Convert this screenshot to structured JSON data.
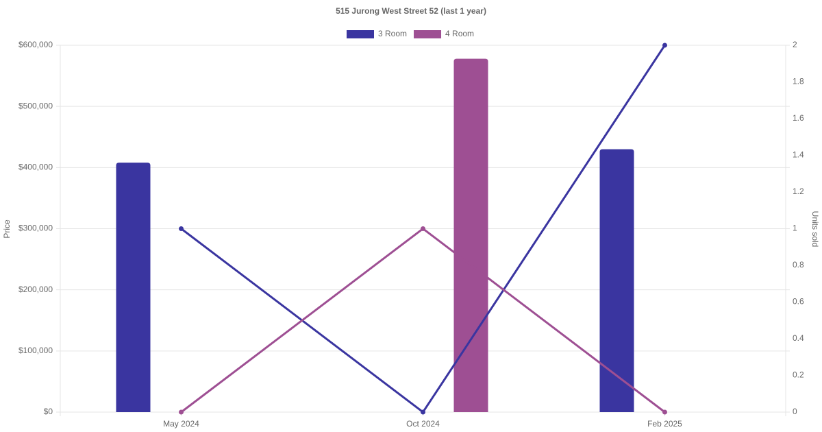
{
  "chart_data": {
    "type": "bar",
    "title": "515 Jurong West Street 52 (last 1 year)",
    "y_label": "Price",
    "y2_label": "Units sold",
    "categories": [
      "May 2024",
      "Oct 2024",
      "Feb 2025"
    ],
    "series": [
      {
        "name": "3 Room",
        "color": "#3a35a0",
        "values": [
          408000,
          null,
          430000
        ],
        "units": [
          1,
          0,
          2
        ]
      },
      {
        "name": "4 Room",
        "color": "#9e4f93",
        "values": [
          null,
          578000,
          null
        ],
        "units": [
          0,
          1,
          0
        ]
      }
    ],
    "ylim": [
      0,
      600000
    ],
    "yticks": [
      {
        "value": 0,
        "label": "$0"
      },
      {
        "value": 100000,
        "label": "$100,000"
      },
      {
        "value": 200000,
        "label": "$200,000"
      },
      {
        "value": 300000,
        "label": "$300,000"
      },
      {
        "value": 400000,
        "label": "$400,000"
      },
      {
        "value": 500000,
        "label": "$500,000"
      },
      {
        "value": 600000,
        "label": "$600,000"
      }
    ],
    "y2lim": [
      0,
      2
    ],
    "y2ticks": [
      0,
      0.2,
      0.4,
      0.6,
      0.8,
      1,
      1.2,
      1.4,
      1.6,
      1.8,
      2
    ],
    "grid": true
  }
}
